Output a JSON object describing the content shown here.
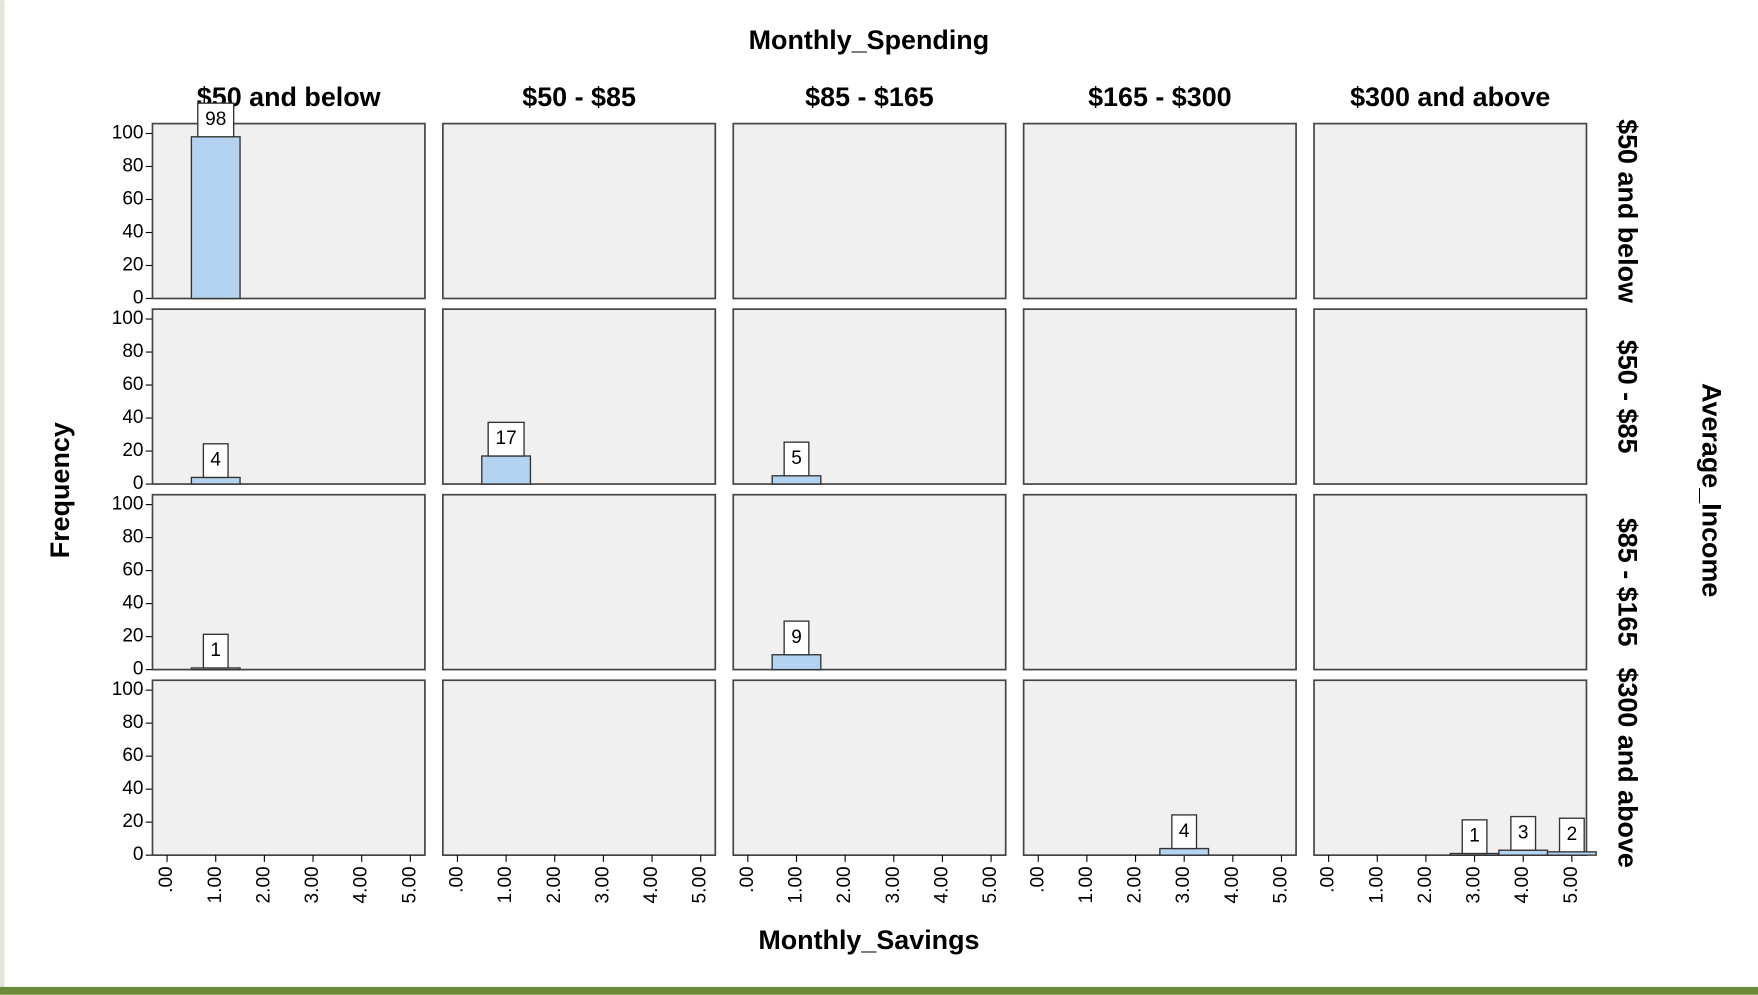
{
  "chart_data": {
    "type": "bar",
    "title": "Monthly_Spending",
    "row_title": "Average_Income",
    "x_label": "Monthly_Savings",
    "y_label": "Frequency",
    "columns": [
      "$50 and below",
      "$50 - $85",
      "$85 - $165",
      "$165 - $300",
      "$300 and above"
    ],
    "rows": [
      "$50 and below",
      "$50 - $85",
      "$85 - $165",
      "$300 and above"
    ],
    "x": [
      0,
      1,
      2,
      3,
      4,
      5
    ],
    "xlim": [
      -0.3,
      5.3
    ],
    "xticks": [
      {
        "value": 0,
        "label": ".00"
      },
      {
        "value": 1,
        "label": "1.00"
      },
      {
        "value": 2,
        "label": "2.00"
      },
      {
        "value": 3,
        "label": "3.00"
      },
      {
        "value": 4,
        "label": "4.00"
      },
      {
        "value": 5,
        "label": "5.00"
      }
    ],
    "ylim": [
      0,
      106
    ],
    "yticks": [
      0,
      20,
      40,
      60,
      80,
      100
    ],
    "color": "#b4d3f0",
    "cells": [
      [
        [
          null,
          98,
          null,
          null,
          null,
          null
        ],
        [
          null,
          null,
          null,
          null,
          null,
          null
        ],
        [
          null,
          null,
          null,
          null,
          null,
          null
        ],
        [
          null,
          null,
          null,
          null,
          null,
          null
        ],
        [
          null,
          null,
          null,
          null,
          null,
          null
        ]
      ],
      [
        [
          null,
          4,
          null,
          null,
          null,
          null
        ],
        [
          null,
          17,
          null,
          null,
          null,
          null
        ],
        [
          null,
          5,
          null,
          null,
          null,
          null
        ],
        [
          null,
          null,
          null,
          null,
          null,
          null
        ],
        [
          null,
          null,
          null,
          null,
          null,
          null
        ]
      ],
      [
        [
          null,
          1,
          null,
          null,
          null,
          null
        ],
        [
          null,
          null,
          null,
          null,
          null,
          null
        ],
        [
          null,
          9,
          null,
          null,
          null,
          null
        ],
        [
          null,
          null,
          null,
          null,
          null,
          null
        ],
        [
          null,
          null,
          null,
          null,
          null,
          null
        ]
      ],
      [
        [
          null,
          null,
          null,
          null,
          null,
          null
        ],
        [
          null,
          null,
          null,
          null,
          null,
          null
        ],
        [
          null,
          null,
          null,
          null,
          null,
          null
        ],
        [
          null,
          null,
          null,
          4,
          null,
          null
        ],
        [
          null,
          null,
          null,
          1,
          3,
          2
        ]
      ]
    ]
  }
}
